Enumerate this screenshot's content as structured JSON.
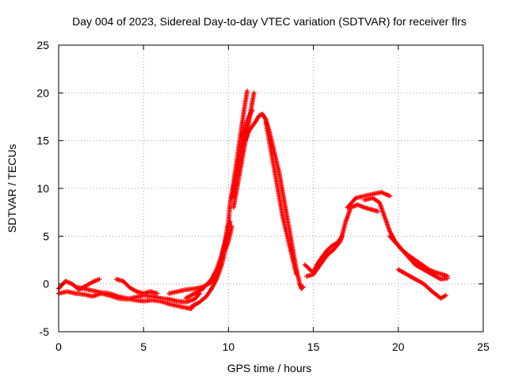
{
  "chart_data": {
    "type": "scatter",
    "title": "Day 004 of 2023, Sidereal Day-to-day VTEC variation (SDTVAR) for receiver flrs",
    "xlabel": "GPS time / hours",
    "ylabel": "SDTVAR / TECUs",
    "xlim": [
      0,
      25
    ],
    "ylim": [
      -5,
      25
    ],
    "xticks": [
      "0",
      "5",
      "10",
      "15",
      "20",
      "25"
    ],
    "yticks": [
      "-5",
      "0",
      "5",
      "10",
      "15",
      "20",
      "25"
    ],
    "grid": true,
    "marker": "+",
    "color": "#ff0000",
    "series": [
      {
        "name": "satellite tracks",
        "tracks": [
          [
            [
              0.0,
              -0.5
            ],
            [
              0.4,
              0.3
            ],
            [
              0.8,
              0.0
            ],
            [
              1.2,
              -0.6
            ],
            [
              1.6,
              -0.2
            ],
            [
              2.0,
              0.2
            ],
            [
              2.4,
              0.5
            ]
          ],
          [
            [
              0.0,
              -1.0
            ],
            [
              0.5,
              -0.8
            ],
            [
              1.0,
              -1.0
            ],
            [
              1.5,
              -1.1
            ],
            [
              2.0,
              -1.3
            ],
            [
              2.5,
              -1.0
            ],
            [
              3.0,
              -1.2
            ],
            [
              3.5,
              -1.5
            ],
            [
              4.0,
              -1.6
            ],
            [
              4.5,
              -1.4
            ],
            [
              5.0,
              -1.2
            ],
            [
              5.5,
              -1.3
            ],
            [
              6.0,
              -1.5
            ],
            [
              6.5,
              -1.6
            ],
            [
              7.0,
              -1.8
            ],
            [
              7.5,
              -1.9
            ],
            [
              8.0,
              -1.6
            ],
            [
              8.3,
              -1.0
            ]
          ],
          [
            [
              1.0,
              -0.3
            ],
            [
              1.5,
              -0.5
            ],
            [
              2.0,
              -0.7
            ],
            [
              2.5,
              -0.9
            ],
            [
              3.0,
              -1.0
            ],
            [
              3.5,
              -1.3
            ],
            [
              4.0,
              -1.5
            ],
            [
              4.5,
              -1.7
            ],
            [
              5.0,
              -1.8
            ],
            [
              5.5,
              -1.7
            ],
            [
              6.0,
              -1.8
            ],
            [
              6.5,
              -2.1
            ],
            [
              7.0,
              -2.3
            ],
            [
              7.5,
              -2.5
            ],
            [
              7.8,
              -2.6
            ],
            [
              8.0,
              -2.2
            ]
          ],
          [
            [
              3.4,
              0.5
            ],
            [
              3.8,
              0.3
            ],
            [
              4.2,
              -0.4
            ],
            [
              4.6,
              -0.8
            ],
            [
              5.0,
              -1.0
            ],
            [
              5.4,
              -0.8
            ],
            [
              5.8,
              -1.0
            ]
          ],
          [
            [
              6.5,
              -1.0
            ],
            [
              7.0,
              -0.8
            ],
            [
              7.5,
              -0.6
            ],
            [
              8.0,
              -0.5
            ],
            [
              8.5,
              -0.3
            ],
            [
              9.0,
              0.2
            ],
            [
              9.3,
              1.0
            ],
            [
              9.5,
              2.0
            ],
            [
              9.7,
              3.5
            ],
            [
              9.9,
              5.0
            ],
            [
              10.0,
              6.0
            ],
            [
              10.1,
              6.5
            ]
          ],
          [
            [
              7.8,
              -2.4
            ],
            [
              8.3,
              -1.9
            ],
            [
              8.7,
              -1.3
            ],
            [
              9.0,
              -0.5
            ],
            [
              9.3,
              0.5
            ],
            [
              9.6,
              2.0
            ],
            [
              9.8,
              3.5
            ],
            [
              10.0,
              4.5
            ],
            [
              10.2,
              6.0
            ]
          ],
          [
            [
              7.5,
              -1.5
            ],
            [
              8.0,
              -1.0
            ],
            [
              8.5,
              -0.5
            ],
            [
              9.0,
              0.5
            ],
            [
              9.3,
              1.5
            ],
            [
              9.6,
              3.0
            ],
            [
              9.8,
              4.5
            ],
            [
              10.0,
              6.5
            ],
            [
              10.1,
              8.5
            ],
            [
              10.3,
              10.5
            ],
            [
              10.5,
              13.0
            ],
            [
              10.7,
              15.5
            ],
            [
              10.9,
              18.0
            ],
            [
              11.1,
              20.2
            ]
          ],
          [
            [
              10.2,
              9.0
            ],
            [
              10.4,
              11.0
            ],
            [
              10.6,
              13.0
            ],
            [
              10.8,
              15.0
            ],
            [
              11.0,
              16.5
            ],
            [
              11.2,
              17.5
            ],
            [
              11.4,
              18.2
            ]
          ],
          [
            [
              10.3,
              8.0
            ],
            [
              10.5,
              10.0
            ],
            [
              10.7,
              12.0
            ],
            [
              10.9,
              14.0
            ],
            [
              11.1,
              16.0
            ],
            [
              11.3,
              18.0
            ],
            [
              11.5,
              20.0
            ]
          ],
          [
            [
              11.0,
              15.0
            ],
            [
              11.2,
              16.0
            ],
            [
              11.4,
              16.5
            ],
            [
              11.6,
              17.0
            ],
            [
              11.8,
              17.6
            ],
            [
              12.0,
              17.8
            ],
            [
              12.2,
              17.2
            ],
            [
              12.4,
              16.0
            ],
            [
              12.6,
              14.5
            ],
            [
              12.8,
              13.0
            ],
            [
              13.0,
              11.5
            ],
            [
              13.2,
              9.5
            ],
            [
              13.4,
              7.5
            ],
            [
              13.6,
              5.5
            ],
            [
              13.8,
              3.5
            ],
            [
              14.0,
              1.5
            ],
            [
              14.2,
              0.0
            ],
            [
              14.3,
              -0.5
            ],
            [
              14.4,
              -0.3
            ]
          ],
          [
            [
              12.2,
              17.0
            ],
            [
              12.4,
              15.0
            ],
            [
              12.6,
              13.0
            ],
            [
              12.8,
              11.0
            ],
            [
              13.0,
              9.0
            ],
            [
              13.2,
              7.0
            ],
            [
              13.4,
              5.5
            ],
            [
              13.6,
              4.0
            ],
            [
              13.8,
              2.5
            ],
            [
              14.0,
              1.0
            ]
          ],
          [
            [
              14.5,
              2.0
            ],
            [
              14.8,
              1.5
            ],
            [
              15.0,
              1.2
            ],
            [
              15.2,
              2.0
            ],
            [
              15.5,
              2.8
            ],
            [
              15.8,
              3.5
            ],
            [
              16.1,
              4.0
            ],
            [
              16.4,
              4.3
            ],
            [
              16.7,
              5.0
            ]
          ],
          [
            [
              14.6,
              0.8
            ],
            [
              15.0,
              1.0
            ],
            [
              15.4,
              2.0
            ],
            [
              15.8,
              3.0
            ],
            [
              16.2,
              3.6
            ],
            [
              16.6,
              4.5
            ],
            [
              16.9,
              6.5
            ],
            [
              17.2,
              8.0
            ],
            [
              17.6,
              8.3
            ],
            [
              18.0,
              8.0
            ],
            [
              18.4,
              7.8
            ],
            [
              18.8,
              7.6
            ]
          ],
          [
            [
              17.0,
              8.0
            ],
            [
              17.5,
              9.0
            ],
            [
              18.0,
              9.2
            ],
            [
              18.5,
              9.4
            ],
            [
              19.0,
              9.6
            ],
            [
              19.5,
              9.2
            ]
          ],
          [
            [
              18.0,
              8.8
            ],
            [
              18.5,
              9.0
            ],
            [
              18.9,
              8.5
            ],
            [
              19.2,
              7.0
            ],
            [
              19.5,
              5.5
            ],
            [
              19.8,
              4.5
            ],
            [
              20.2,
              3.6
            ],
            [
              20.6,
              3.0
            ],
            [
              21.0,
              2.5
            ],
            [
              21.4,
              2.0
            ],
            [
              21.8,
              1.5
            ],
            [
              22.2,
              1.2
            ],
            [
              22.6,
              1.0
            ],
            [
              22.9,
              0.8
            ]
          ],
          [
            [
              19.5,
              5.0
            ],
            [
              20.0,
              4.0
            ],
            [
              20.5,
              3.0
            ],
            [
              21.0,
              2.0
            ],
            [
              21.5,
              1.5
            ],
            [
              22.0,
              1.0
            ],
            [
              22.5,
              0.5
            ],
            [
              22.9,
              0.6
            ]
          ],
          [
            [
              20.0,
              1.5
            ],
            [
              20.5,
              1.0
            ],
            [
              21.0,
              0.5
            ],
            [
              21.5,
              0.0
            ],
            [
              22.0,
              -0.8
            ],
            [
              22.5,
              -1.5
            ],
            [
              22.8,
              -1.2
            ]
          ]
        ]
      }
    ]
  }
}
